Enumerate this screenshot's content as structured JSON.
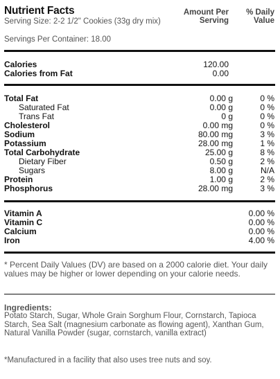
{
  "header": {
    "title": "Nutrient Facts",
    "serving_size": "Serving Size: 2-2 1/2\" Cookies (33g dry mix)",
    "servings_per_container": "Servings Per Container: 18.00",
    "col_amount": "Amount Per Serving",
    "col_dv": "% Daily Value"
  },
  "calories": [
    {
      "label": "Calories",
      "amount": "120.00",
      "dv": ""
    },
    {
      "label": "Calories from Fat",
      "amount": "0.00",
      "dv": ""
    }
  ],
  "nutrients": [
    {
      "label": "Total Fat",
      "amount": "0.00 g",
      "dv": "0 %",
      "bold": true,
      "indent": false
    },
    {
      "label": "Saturated Fat",
      "amount": "0.00 g",
      "dv": "0 %",
      "bold": false,
      "indent": true
    },
    {
      "label": "Trans Fat",
      "amount": "0 g",
      "dv": "0 %",
      "bold": false,
      "indent": true
    },
    {
      "label": "Cholesterol",
      "amount": "0.00 mg",
      "dv": "0 %",
      "bold": true,
      "indent": false
    },
    {
      "label": "Sodium",
      "amount": "80.00 mg",
      "dv": "3 %",
      "bold": true,
      "indent": false
    },
    {
      "label": "Potassium",
      "amount": "28.00 mg",
      "dv": "1 %",
      "bold": true,
      "indent": false
    },
    {
      "label": "Total Carbohydrate",
      "amount": "25.00 g",
      "dv": "8 %",
      "bold": true,
      "indent": false
    },
    {
      "label": "Dietary Fiber",
      "amount": "0.50 g",
      "dv": "2 %",
      "bold": false,
      "indent": true
    },
    {
      "label": "Sugars",
      "amount": "8.00 g",
      "dv": "N/A",
      "bold": false,
      "indent": true
    },
    {
      "label": "Protein",
      "amount": "1.00 g",
      "dv": "2 %",
      "bold": true,
      "indent": false
    },
    {
      "label": "Phosphorus",
      "amount": "28.00 mg",
      "dv": "3 %",
      "bold": true,
      "indent": false
    }
  ],
  "vitamins": [
    {
      "label": "Vitamin A",
      "dv": "0.00 %"
    },
    {
      "label": "Vitamin C",
      "dv": "0.00 %"
    },
    {
      "label": "Calcium",
      "dv": "0.00 %"
    },
    {
      "label": "Iron",
      "dv": "4.00 %"
    }
  ],
  "footnote": "* Percent Daily Values (DV) are based on a 2000 calorie diet. Your daily values may be higher or lower depending on your calorie needs.",
  "ingredients": {
    "heading": "Ingredients:",
    "text": "Potato Starch, Sugar, Whole Grain Sorghum Flour, Cornstarch, Tapioca Starch, Sea Salt (magnesium carbonate as flowing agent), Xanthan Gum, Natural Vanilla Powder (sugar, cornstarch, vanilla extract)"
  },
  "manufacturing_note": "*Manufactured in a facility that also uses tree nuts and soy."
}
